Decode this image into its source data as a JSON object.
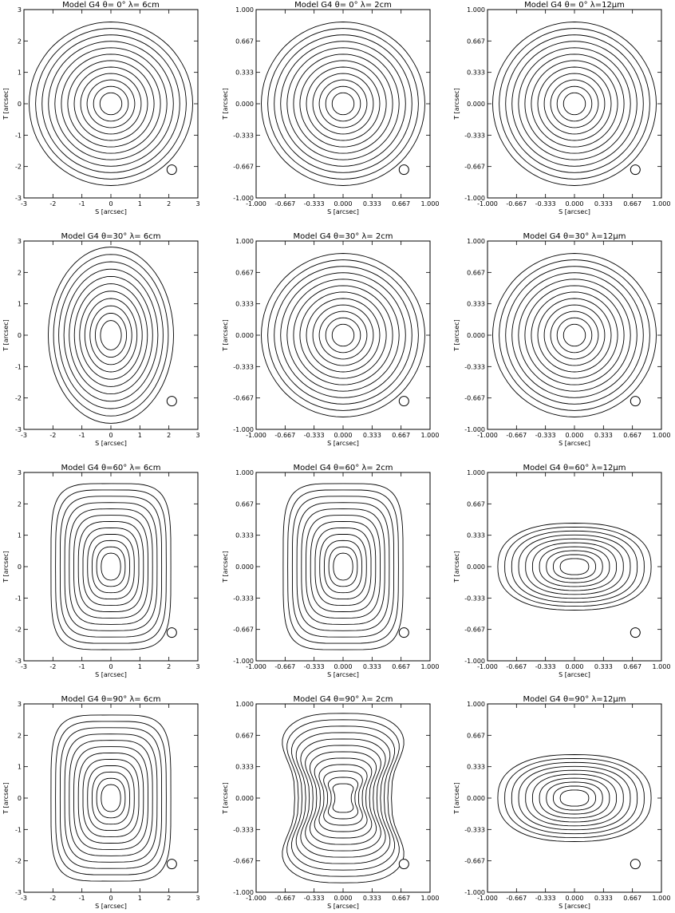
{
  "figure": {
    "model": "Model G4",
    "panels": [
      {
        "title": "Model G4 θ= 0° λ= 6cm",
        "xlabel": "S [arcsec]",
        "ylabel": "T [arcsec]",
        "xticks": [
          "-3",
          "-2",
          "-1",
          "0",
          "1",
          "2",
          "3"
        ],
        "yticks": [
          "3",
          "2",
          "1",
          "0",
          "-1",
          "-2",
          "-3"
        ],
        "shape": "disk",
        "beam": "circle"
      },
      {
        "title": "Model G4 θ= 0° λ= 2cm",
        "xlabel": "S [arcsec]",
        "ylabel": "T [arcsec]",
        "xticks": [
          "-1.000",
          "-0.667",
          "-0.333",
          "0.000",
          "0.333",
          "0.667",
          "1.000"
        ],
        "yticks": [
          "1.000",
          "0.667",
          "0.333",
          "0.000",
          "-0.333",
          "-0.667",
          "-1.000"
        ],
        "shape": "disk",
        "beam": "circle"
      },
      {
        "title": "Model G4 θ= 0° λ=12μm",
        "xlabel": "S [arcsec]",
        "ylabel": "T [arcsec]",
        "xticks": [
          "-1.000",
          "-0.667",
          "-0.333",
          "0.000",
          "0.333",
          "0.667",
          "1.000"
        ],
        "yticks": [
          "1.000",
          "0.667",
          "0.333",
          "0.000",
          "-0.333",
          "-0.667",
          "-1.000"
        ],
        "shape": "disk",
        "beam": "circle"
      },
      {
        "title": "Model G4 θ=30° λ= 6cm",
        "xlabel": "S [arcsec]",
        "ylabel": "T [arcsec]",
        "xticks": [
          "-3",
          "-2",
          "-1",
          "0",
          "1",
          "2",
          "3"
        ],
        "yticks": [
          "3",
          "2",
          "1",
          "0",
          "-1",
          "-2",
          "-3"
        ],
        "shape": "oval",
        "beam": "circle"
      },
      {
        "title": "Model G4 θ=30° λ= 2cm",
        "xlabel": "S [arcsec]",
        "ylabel": "T [arcsec]",
        "xticks": [
          "-1.000",
          "-0.667",
          "-0.333",
          "0.000",
          "0.333",
          "0.667",
          "1.000"
        ],
        "yticks": [
          "1.000",
          "0.667",
          "0.333",
          "0.000",
          "-0.333",
          "-0.667",
          "-1.000"
        ],
        "shape": "disk",
        "beam": "circle"
      },
      {
        "title": "Model G4 θ=30° λ=12μm",
        "xlabel": "S [arcsec]",
        "ylabel": "T [arcsec]",
        "xticks": [
          "-1.000",
          "-0.667",
          "-0.333",
          "0.000",
          "0.333",
          "0.667",
          "1.000"
        ],
        "yticks": [
          "1.000",
          "0.667",
          "0.333",
          "0.000",
          "-0.333",
          "-0.667",
          "-1.000"
        ],
        "shape": "disk",
        "beam": "circle"
      },
      {
        "title": "Model G4 θ=60° λ= 6cm",
        "xlabel": "S [arcsec]",
        "ylabel": "T [arcsec]",
        "xticks": [
          "-3",
          "-2",
          "-1",
          "0",
          "1",
          "2",
          "3"
        ],
        "yticks": [
          "3",
          "2",
          "1",
          "0",
          "-1",
          "-2",
          "-3"
        ],
        "shape": "rect",
        "beam": "circle"
      },
      {
        "title": "Model G4 θ=60° λ= 2cm",
        "xlabel": "S [arcsec]",
        "ylabel": "T [arcsec]",
        "xticks": [
          "-1.000",
          "-0.667",
          "-0.333",
          "0.000",
          "0.333",
          "0.667",
          "1.000"
        ],
        "yticks": [
          "1.000",
          "0.667",
          "0.333",
          "0.000",
          "-0.333",
          "-0.667",
          "-1.000"
        ],
        "shape": "rect",
        "beam": "circle"
      },
      {
        "title": "Model G4 θ=60° λ=12μm",
        "xlabel": "S [arcsec]",
        "ylabel": "T [arcsec]",
        "xticks": [
          "-1.000",
          "-0.667",
          "-0.333",
          "0.000",
          "0.333",
          "0.667",
          "1.000"
        ],
        "yticks": [
          "1.000",
          "0.667",
          "0.333",
          "0.000",
          "-0.333",
          "-0.667",
          "-1.000"
        ],
        "shape": "wide",
        "beam": "circle"
      },
      {
        "title": "Model G4 θ=90° λ= 6cm",
        "xlabel": "S [arcsec]",
        "ylabel": "T [arcsec]",
        "xticks": [
          "-3",
          "-2",
          "-1",
          "0",
          "1",
          "2",
          "3"
        ],
        "yticks": [
          "3",
          "2",
          "1",
          "0",
          "-1",
          "-2",
          "-3"
        ],
        "shape": "rect",
        "beam": "circle"
      },
      {
        "title": "Model G4 θ=90° λ= 2cm",
        "xlabel": "S [arcsec]",
        "ylabel": "T [arcsec]",
        "xticks": [
          "-1.000",
          "-0.667",
          "-0.333",
          "0.000",
          "0.333",
          "0.667",
          "1.000"
        ],
        "yticks": [
          "1.000",
          "0.667",
          "0.333",
          "0.000",
          "-0.333",
          "-0.667",
          "-1.000"
        ],
        "shape": "pinched",
        "beam": "circle"
      },
      {
        "title": "Model G4 θ=90° λ=12μm",
        "xlabel": "S [arcsec]",
        "ylabel": "T [arcsec]",
        "xticks": [
          "-1.000",
          "-0.667",
          "-0.333",
          "0.000",
          "0.333",
          "0.667",
          "1.000"
        ],
        "yticks": [
          "1.000",
          "0.667",
          "0.333",
          "0.000",
          "-0.333",
          "-0.667",
          "-1.000"
        ],
        "shape": "wide",
        "beam": "circle"
      }
    ]
  }
}
